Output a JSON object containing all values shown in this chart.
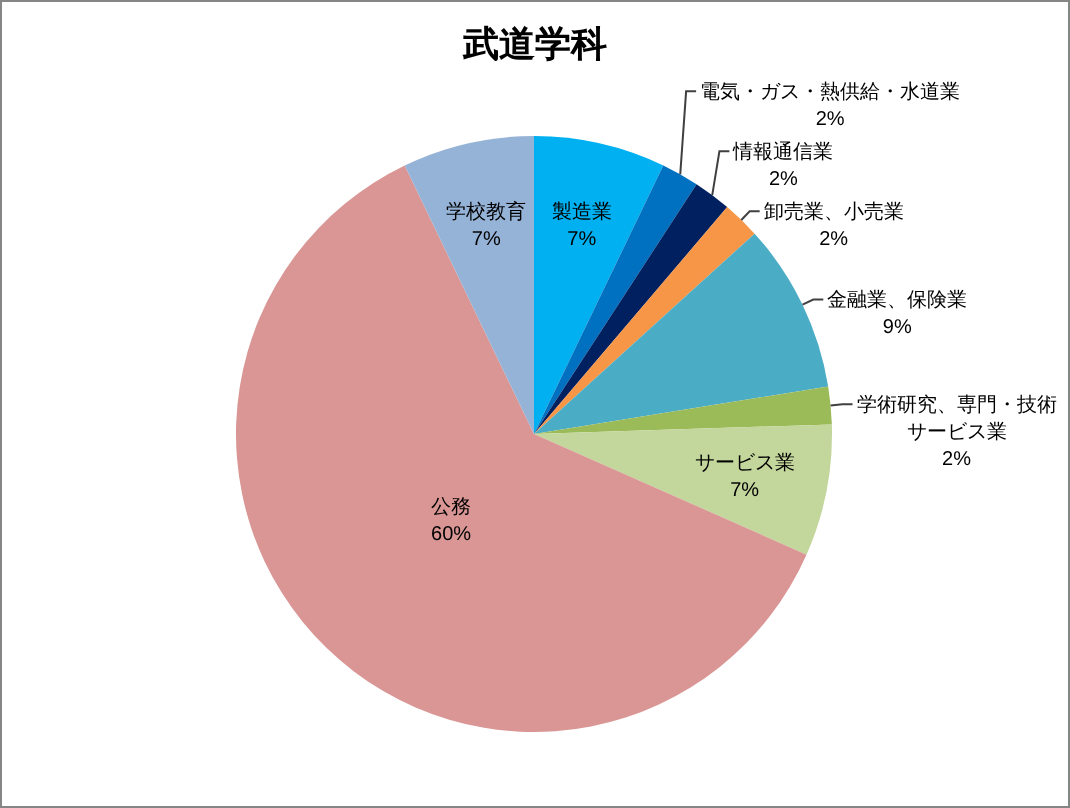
{
  "chart_data": {
    "type": "pie",
    "title": "武道学科",
    "categories": [
      "製造業",
      "電気・ガス・熱供給・水道業",
      "情報通信業",
      "卸売業、小売業",
      "金融業、保険業",
      "学術研究、専門・技術サービス業",
      "サービス業",
      "公務",
      "学校教育"
    ],
    "values": [
      7,
      2,
      2,
      2,
      9,
      2,
      7,
      60,
      7
    ],
    "value_labels": [
      "7%",
      "2%",
      "2%",
      "2%",
      "9%",
      "2%",
      "7%",
      "60%",
      "7%"
    ],
    "colors": [
      "#00b0f0",
      "#0070c0",
      "#002060",
      "#f79646",
      "#4bacc6",
      "#9bbb59",
      "#c3d69b",
      "#d99694",
      "#95b3d7"
    ]
  }
}
